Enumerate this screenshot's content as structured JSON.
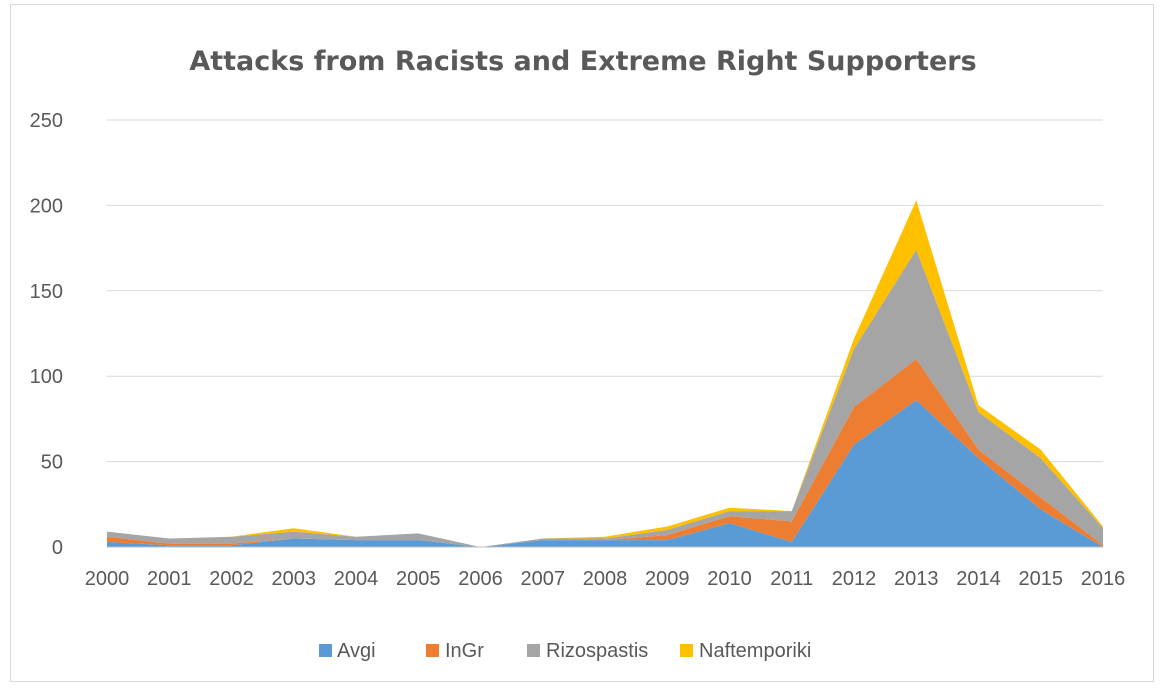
{
  "chart_data": {
    "type": "area",
    "stacked": true,
    "title": "Attacks from Racists and Extreme Right Supporters",
    "xlabel": "",
    "ylabel": "",
    "categories": [
      "2000",
      "2001",
      "2002",
      "2003",
      "2004",
      "2005",
      "2006",
      "2007",
      "2008",
      "2009",
      "2010",
      "2011",
      "2012",
      "2013",
      "2014",
      "2015",
      "2016"
    ],
    "ylim": [
      0,
      250
    ],
    "yticks": [
      "0",
      "50",
      "100",
      "150",
      "200",
      "250"
    ],
    "grid": true,
    "legend_position": "bottom",
    "series": [
      {
        "name": "Avgi",
        "color": "#5b9bd5",
        "values": [
          3,
          1,
          1,
          5,
          4,
          4,
          0,
          4,
          4,
          4,
          14,
          3,
          60,
          86,
          52,
          22,
          0
        ]
      },
      {
        "name": "InGr",
        "color": "#ed7d31",
        "values": [
          3,
          1,
          1,
          0,
          0,
          0,
          0,
          0,
          0,
          3,
          4,
          12,
          22,
          24,
          5,
          7,
          1
        ]
      },
      {
        "name": "Rizospastis",
        "color": "#a5a5a5",
        "values": [
          3,
          3,
          4,
          4,
          2,
          4,
          0,
          1,
          1,
          3,
          3,
          6,
          34,
          64,
          22,
          23,
          10
        ]
      },
      {
        "name": "Naftemporiki",
        "color": "#ffc000",
        "values": [
          0,
          0,
          0,
          2,
          0,
          0,
          0,
          0,
          1,
          2,
          2,
          0,
          6,
          29,
          4,
          5,
          1
        ]
      }
    ]
  }
}
